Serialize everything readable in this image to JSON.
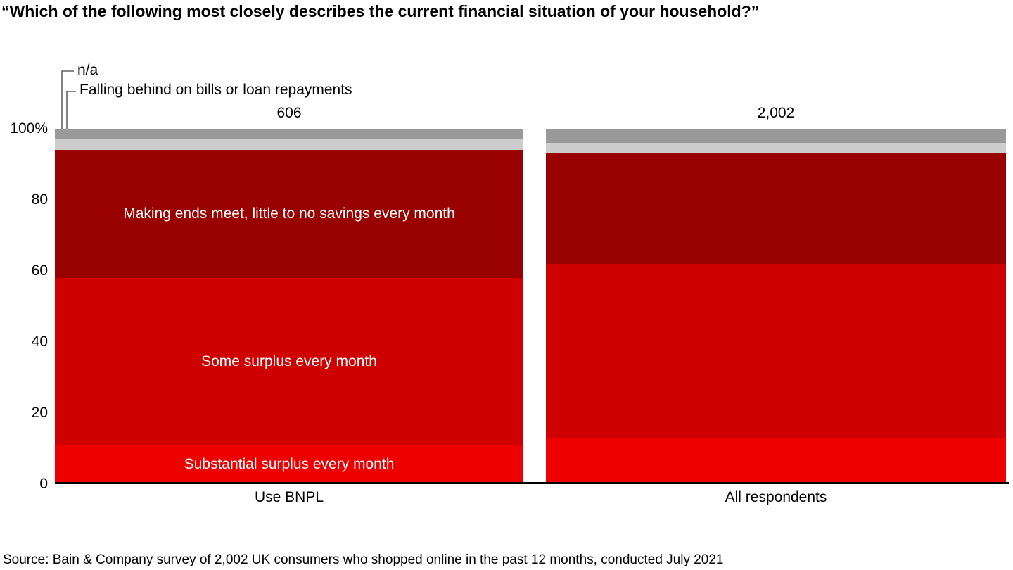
{
  "title": "“Which of the following most closely describes the current financial situation of your household?”",
  "source": "Source: Bain & Company survey of 2,002 UK consumers who shopped online in the past 12 months, conducted July 2021",
  "chart_data": {
    "type": "bar",
    "subtype": "100_percent_stacked_bar",
    "title": "“Which of the following most closely describes the current financial situation of your household?”",
    "xlabel": "",
    "ylabel": "",
    "ylim": [
      0,
      100
    ],
    "y_ticks": [
      "100%",
      "80",
      "60",
      "40",
      "20",
      "0"
    ],
    "grid": false,
    "legend_position": "in-bar and leader-line annotations",
    "categories_top_to_bottom": [
      "n/a",
      "Falling behind on bills or loan repayments",
      "Making ends meet, little to no savings every month",
      "Some surplus every month",
      "Substantial surplus every month"
    ],
    "palette_top_to_bottom": [
      "#999999",
      "#cccccc",
      "#990000",
      "#cf0000",
      "#ee0000"
    ],
    "annotation_labels": [
      "n/a",
      "Falling behind on bills or loan repayments"
    ],
    "bars": [
      {
        "label": "Use BNPL",
        "n": "606",
        "values_top_to_bottom": [
          3,
          3,
          36,
          47,
          11
        ],
        "show_segment_labels": [
          false,
          false,
          true,
          true,
          true
        ]
      },
      {
        "label": "All respondents",
        "n": "2,002",
        "values_top_to_bottom": [
          4,
          3,
          31,
          49,
          13
        ],
        "show_segment_labels": [
          false,
          false,
          false,
          false,
          false
        ]
      }
    ]
  }
}
